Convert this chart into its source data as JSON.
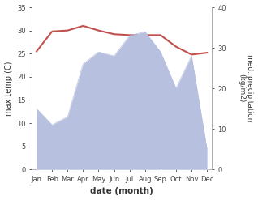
{
  "months": [
    "Jan",
    "Feb",
    "Mar",
    "Apr",
    "May",
    "Jun",
    "Jul",
    "Aug",
    "Sep",
    "Oct",
    "Nov",
    "Dec"
  ],
  "temperature": [
    25.5,
    29.8,
    30.0,
    31.0,
    30.0,
    29.2,
    29.0,
    29.0,
    29.0,
    26.5,
    24.8,
    25.2
  ],
  "precipitation": [
    15,
    11,
    13,
    26,
    29,
    28,
    33,
    34,
    29,
    20,
    28,
    5
  ],
  "temp_color": "#c0504d",
  "precip_fill_color": "#b8c0e0",
  "precip_edge_color": "#b8c0e0",
  "background": "#ffffff",
  "ylabel_left": "max temp (C)",
  "ylabel_right": "med. precipitation\n(kg/m2)",
  "xlabel": "date (month)",
  "ylim_left": [
    0,
    35
  ],
  "ylim_right": [
    0,
    40
  ],
  "yticks_left": [
    0,
    5,
    10,
    15,
    20,
    25,
    30,
    35
  ],
  "yticks_right": [
    0,
    10,
    20,
    30,
    40
  ]
}
